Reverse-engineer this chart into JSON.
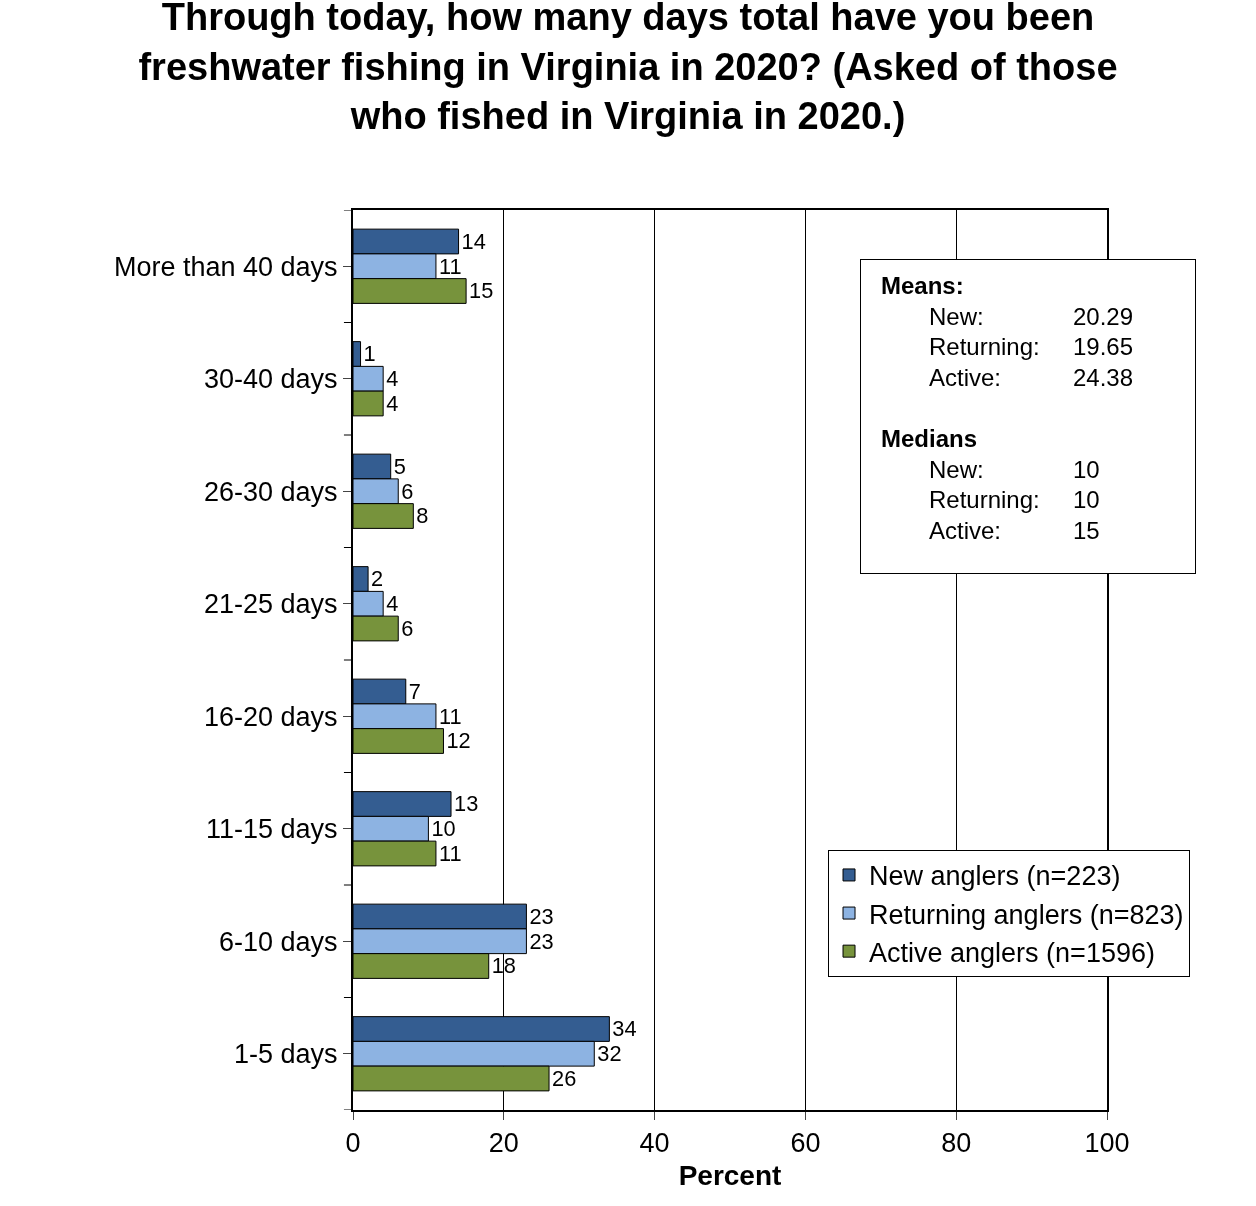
{
  "chart_data": {
    "type": "bar",
    "orientation": "horizontal",
    "title": "Through today, how many days total have you been freshwater fishing in Virginia in 2020? (Asked of those who fished in Virginia in 2020.)",
    "xlabel": "Percent",
    "categories": [
      "More than 40 days",
      "30-40 days",
      "26-30 days",
      "21-25 days",
      "16-20 days",
      "11-15 days",
      "6-10 days",
      "1-5 days"
    ],
    "series": [
      {
        "name": "New anglers (n=223)",
        "color": "#345d91",
        "values": [
          14,
          1,
          5,
          2,
          7,
          13,
          23,
          34
        ]
      },
      {
        "name": "Returning anglers (n=823)",
        "color": "#8db3e2",
        "values": [
          11,
          4,
          6,
          4,
          11,
          10,
          23,
          32
        ]
      },
      {
        "name": "Active anglers (n=1596)",
        "color": "#77933c",
        "values": [
          15,
          4,
          8,
          6,
          12,
          11,
          18,
          26
        ]
      }
    ],
    "xlim": [
      0,
      100
    ],
    "xticks": [
      0,
      20,
      40,
      60,
      80,
      100
    ],
    "grid": "x",
    "legend": "bottom right",
    "data_labels": true,
    "annotations": [
      "Means:",
      "New:",
      "20.29",
      "Returning:",
      "19.65",
      "Active:",
      "24.38",
      "Medians",
      "New:",
      "10",
      "Returning:",
      "10",
      "Active:",
      "15"
    ]
  }
}
